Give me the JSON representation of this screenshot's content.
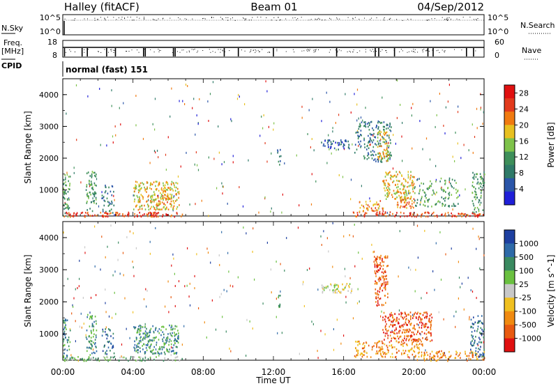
{
  "header": {
    "station": "Halley (fitACF)",
    "beam": "Beam 01",
    "date": "04/Sep/2012"
  },
  "strip_labels": {
    "nsky": "N.Sky",
    "freq_line1": "Freq.",
    "freq_line2": "[MHz]",
    "cpid": "CPID",
    "nsearch": "N.Search",
    "nave": "Nave",
    "cpid_text": "normal (fast) 151"
  },
  "strip_ticks": {
    "nsky_top": "10^5",
    "nsky_bottom": "10^0",
    "nsearch_top": "10^5",
    "nsearch_bottom": "10^0",
    "freq_top": "18",
    "freq_bottom": "8",
    "nave_top": "60",
    "nave_bottom": "0"
  },
  "colors": {
    "power_scale": [
      "#1f1fd8",
      "#2a55a8",
      "#2f7a68",
      "#3e8f5a",
      "#7ec24a",
      "#e8c020",
      "#f07a10",
      "#e23a1c",
      "#e01010"
    ],
    "velocity_scale": [
      "#1d3fa0",
      "#2e6aa8",
      "#3a8a60",
      "#6ac040",
      "#c8c8c8",
      "#f0c020",
      "#f08a10",
      "#e85a10",
      "#e01010"
    ]
  },
  "chart_data": [
    {
      "type": "heatmap",
      "name": "power-panel",
      "xlabel": "",
      "ylabel": "Slant Range [km]",
      "x_ticks": [
        "00:00",
        "04:00",
        "08:00",
        "12:00",
        "16:00",
        "20:00",
        "00:00"
      ],
      "xlim_hours": [
        0,
        24
      ],
      "ylim": [
        180,
        4500
      ],
      "y_ticks": [
        1000,
        2000,
        3000,
        4000
      ],
      "colorbar": {
        "label": "Power [dB]",
        "ticks": [
          "4",
          "8",
          "12",
          "16",
          "20",
          "24",
          "28"
        ],
        "range": [
          0,
          30
        ]
      },
      "patches": [
        {
          "t0": 0.0,
          "t1": 0.4,
          "r0": 200,
          "r1": 1500,
          "density": 0.55,
          "level": 3
        },
        {
          "t0": 1.3,
          "t1": 1.9,
          "r0": 350,
          "r1": 1650,
          "density": 0.5,
          "level": 3
        },
        {
          "t0": 2.2,
          "t1": 2.9,
          "r0": 300,
          "r1": 1200,
          "density": 0.35,
          "level": 2
        },
        {
          "t0": 4.0,
          "t1": 6.6,
          "r0": 400,
          "r1": 1300,
          "density": 0.6,
          "level": 5
        },
        {
          "t0": 5.3,
          "t1": 6.1,
          "r0": 500,
          "r1": 900,
          "density": 0.5,
          "level": 6
        },
        {
          "t0": 0.0,
          "t1": 6.8,
          "r0": 180,
          "r1": 320,
          "density": 0.7,
          "level": 7
        },
        {
          "t0": 12.2,
          "t1": 12.4,
          "r0": 1800,
          "r1": 2300,
          "density": 0.6,
          "level": 2
        },
        {
          "t0": 14.7,
          "t1": 16.3,
          "r0": 2300,
          "r1": 2600,
          "density": 0.6,
          "level": 1
        },
        {
          "t0": 16.6,
          "t1": 18.7,
          "r0": 1900,
          "r1": 3200,
          "density": 0.35,
          "level": 2
        },
        {
          "t0": 17.9,
          "t1": 18.6,
          "r0": 1900,
          "r1": 2900,
          "density": 0.6,
          "level": 5
        },
        {
          "t0": 18.2,
          "t1": 20.0,
          "r0": 700,
          "r1": 1600,
          "density": 0.55,
          "level": 5
        },
        {
          "t0": 19.0,
          "t1": 20.0,
          "r0": 450,
          "r1": 800,
          "density": 0.65,
          "level": 6
        },
        {
          "t0": 16.8,
          "t1": 18.3,
          "r0": 300,
          "r1": 700,
          "density": 0.45,
          "level": 6
        },
        {
          "t0": 20.0,
          "t1": 22.5,
          "r0": 500,
          "r1": 1400,
          "density": 0.3,
          "level": 3
        },
        {
          "t0": 23.3,
          "t1": 24.0,
          "r0": 300,
          "r1": 1600,
          "density": 0.45,
          "level": 3
        },
        {
          "t0": 16.5,
          "t1": 24.0,
          "r0": 180,
          "r1": 330,
          "density": 0.55,
          "level": 7
        }
      ]
    },
    {
      "type": "heatmap",
      "name": "velocity-panel",
      "xlabel": "Time UT",
      "ylabel": "Slant Range [km]",
      "x_ticks": [
        "00:00",
        "04:00",
        "08:00",
        "12:00",
        "16:00",
        "20:00",
        "00:00"
      ],
      "xlim_hours": [
        0,
        24
      ],
      "ylim": [
        180,
        4500
      ],
      "y_ticks": [
        1000,
        2000,
        3000,
        4000
      ],
      "colorbar": {
        "label": "Velocity [m s^-1]",
        "ticks": [
          "1000",
          "500",
          "100",
          "25",
          "-25",
          "-100",
          "-500",
          "-1000"
        ],
        "range": [
          -1000,
          1000
        ]
      },
      "patches": [
        {
          "t0": 0.0,
          "t1": 0.4,
          "r0": 200,
          "r1": 1500,
          "density": 0.55,
          "level": 2
        },
        {
          "t0": 1.3,
          "t1": 1.9,
          "r0": 350,
          "r1": 1650,
          "density": 0.5,
          "level": 2
        },
        {
          "t0": 2.2,
          "t1": 2.9,
          "r0": 300,
          "r1": 1200,
          "density": 0.35,
          "level": 1
        },
        {
          "t0": 4.0,
          "t1": 6.6,
          "r0": 400,
          "r1": 1300,
          "density": 0.6,
          "level": 2
        },
        {
          "t0": 0.0,
          "t1": 6.8,
          "r0": 180,
          "r1": 320,
          "density": 0.6,
          "level": 3
        },
        {
          "t0": 12.2,
          "t1": 12.4,
          "r0": 1800,
          "r1": 2300,
          "density": 0.6,
          "level": 3
        },
        {
          "t0": 14.7,
          "t1": 16.5,
          "r0": 2300,
          "r1": 2600,
          "density": 0.6,
          "level": 4
        },
        {
          "t0": 17.7,
          "t1": 18.5,
          "r0": 1900,
          "r1": 3500,
          "density": 0.6,
          "level": 7
        },
        {
          "t0": 18.2,
          "t1": 21.0,
          "r0": 800,
          "r1": 1700,
          "density": 0.6,
          "level": 7
        },
        {
          "t0": 16.6,
          "t1": 20.5,
          "r0": 300,
          "r1": 800,
          "density": 0.5,
          "level": 6
        },
        {
          "t0": 20.5,
          "t1": 24.0,
          "r0": 180,
          "r1": 500,
          "density": 0.5,
          "level": 6
        },
        {
          "t0": 23.2,
          "t1": 24.0,
          "r0": 300,
          "r1": 1600,
          "density": 0.45,
          "level": 1
        }
      ]
    }
  ]
}
